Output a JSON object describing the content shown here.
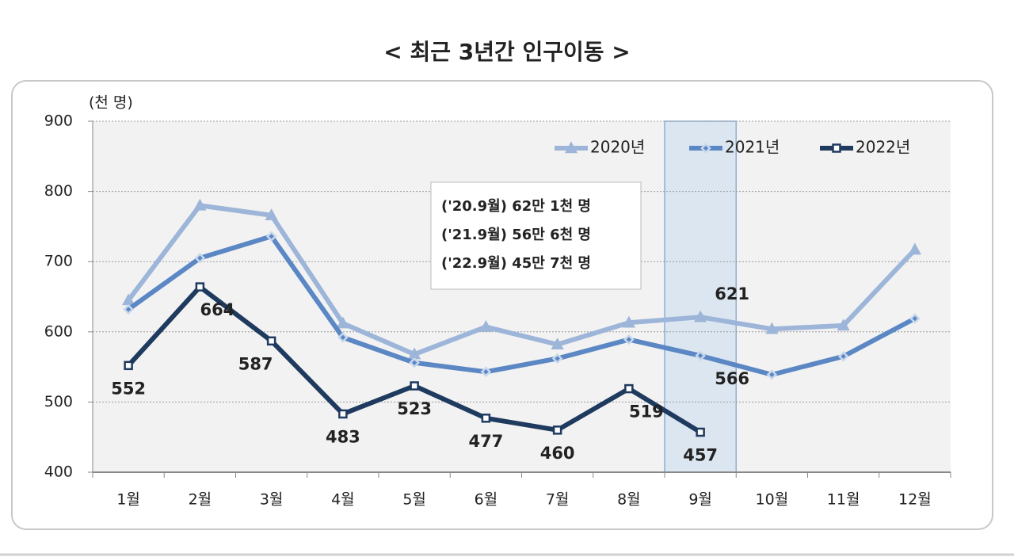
{
  "chart_data": {
    "type": "line",
    "title": "< 최근 3년간 인구이동 >",
    "y_unit_label": "(천 명)",
    "categories": [
      "1월",
      "2월",
      "3월",
      "4월",
      "5월",
      "6월",
      "7월",
      "8월",
      "9월",
      "10월",
      "11월",
      "12월"
    ],
    "series": [
      {
        "name": "2020년",
        "color": "#9db5d8",
        "marker": "triangle",
        "values": [
          645,
          780,
          766,
          612,
          568,
          607,
          582,
          613,
          621,
          604,
          609,
          717
        ],
        "label_indices": [
          8
        ]
      },
      {
        "name": "2021년",
        "color": "#5b87c5",
        "marker": "diamond",
        "values": [
          632,
          705,
          736,
          592,
          556,
          543,
          562,
          589,
          566,
          539,
          565,
          619
        ],
        "label_indices": [
          8
        ]
      },
      {
        "name": "2022년",
        "color": "#1f3a5f",
        "marker": "square",
        "values": [
          552,
          664,
          587,
          483,
          523,
          477,
          460,
          519,
          457,
          null,
          null,
          null
        ],
        "label_indices": [
          0,
          1,
          2,
          3,
          4,
          5,
          6,
          7,
          8
        ]
      }
    ],
    "annotation": [
      "('20.9월) 62만 1천 명",
      "('21.9월) 56만 6천 명",
      "('22.9월) 45만 7천 명"
    ],
    "highlight_index": 8,
    "ylim": [
      400,
      900
    ],
    "yticks": [
      400,
      500,
      600,
      700,
      800,
      900
    ],
    "grid": true,
    "legend": "top-right"
  }
}
